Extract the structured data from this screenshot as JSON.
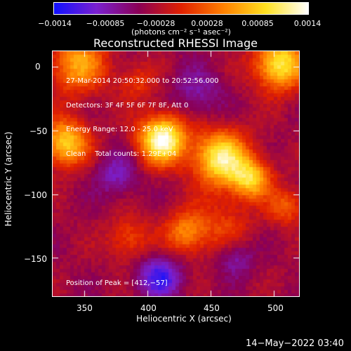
{
  "colorbar": {
    "ticks": [
      "−0.0014",
      "−0.00085",
      "−0.00028",
      "0.00028",
      "0.00085",
      "0.0014"
    ],
    "units": "(photons cm⁻² s⁻¹ asec⁻²)",
    "colors": [
      "#1010ff",
      "#7a20d0",
      "#8a0055",
      "#e02000",
      "#ff8000",
      "#ffe020",
      "#ffffff"
    ]
  },
  "chart_data": {
    "type": "heatmap",
    "title": "Reconstructed RHESSI Image",
    "xlabel": "Heliocentric X (arcsec)",
    "ylabel": "Heliocentric Y (arcsec)",
    "xlim": [
      325,
      520
    ],
    "ylim": [
      -180,
      12
    ],
    "xticks": [
      "350",
      "400",
      "450",
      "500"
    ],
    "yticks": [
      "0",
      "−50",
      "−100",
      "−150"
    ],
    "xtick_values": [
      350,
      400,
      450,
      500
    ],
    "ytick_values": [
      0,
      -50,
      -100,
      -150
    ],
    "annotations": [
      "27-Mar-2014 20:50:32.000 to 20:52:56.000",
      "Detectors: 3F 4F 5F 6F 7F 8F, Att 0",
      "Energy Range: 12.0 - 25.0 keV",
      "Clean    Total counts: 1.29E+04"
    ],
    "peak_label": "Position of Peak = [412,−57]",
    "sources": [
      {
        "x": 412,
        "y": -57,
        "sigma": 13,
        "amp": 1.0
      },
      {
        "x": 458,
        "y": -72,
        "sigma": 15,
        "amp": 0.85
      },
      {
        "x": 482,
        "y": -88,
        "sigma": 11,
        "amp": 0.65
      },
      {
        "x": 505,
        "y": 2,
        "sigma": 14,
        "amp": 0.8
      },
      {
        "x": 335,
        "y": -60,
        "sigma": 13,
        "amp": 0.7
      },
      {
        "x": 345,
        "y": 2,
        "sigma": 16,
        "amp": 0.55
      },
      {
        "x": 430,
        "y": -130,
        "sigma": 12,
        "amp": 0.45
      },
      {
        "x": 385,
        "y": -135,
        "sigma": 12,
        "amp": 0.3
      },
      {
        "x": 460,
        "y": -125,
        "sigma": 16,
        "amp": 0.25
      },
      {
        "x": 510,
        "y": -110,
        "sigma": 10,
        "amp": 0.35
      },
      {
        "x": 392,
        "y": -12,
        "sigma": 10,
        "amp": 0.25
      }
    ],
    "negative_sources": [
      {
        "x": 410,
        "y": -165,
        "sigma": 12,
        "amp": 0.6
      },
      {
        "x": 470,
        "y": -150,
        "sigma": 10,
        "amp": 0.35
      },
      {
        "x": 375,
        "y": -85,
        "sigma": 12,
        "amp": 0.35
      },
      {
        "x": 440,
        "y": -20,
        "sigma": 14,
        "amp": 0.3
      }
    ]
  },
  "footer": "14−May−2022 03:40"
}
